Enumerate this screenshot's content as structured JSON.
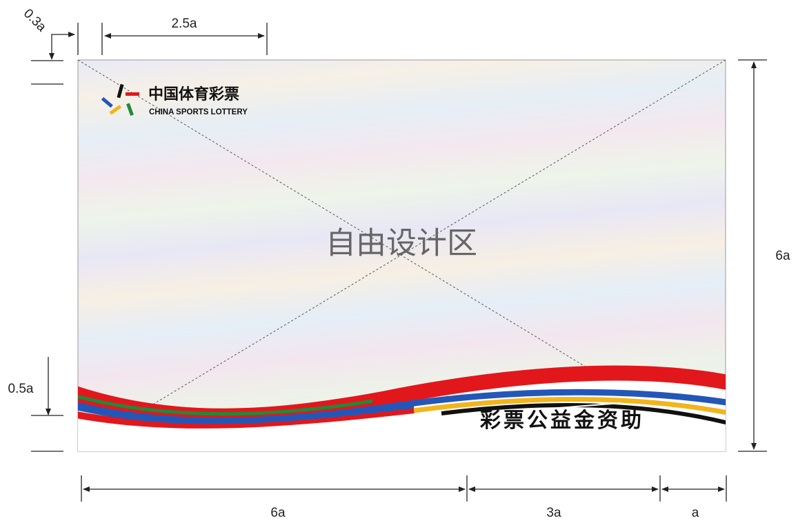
{
  "dimensions": {
    "top_offset": "0.3a",
    "logo_width": "2.5a",
    "height": "6a",
    "wave_height": "0.5a",
    "bottom_left": "6a",
    "bottom_middle": "3a",
    "bottom_right": "a"
  },
  "logo": {
    "title": "中国体育彩票",
    "subtitle": "CHINA SPORTS LOTTERY"
  },
  "center_text": "自由设计区",
  "slogan": "彩票公益金资助"
}
